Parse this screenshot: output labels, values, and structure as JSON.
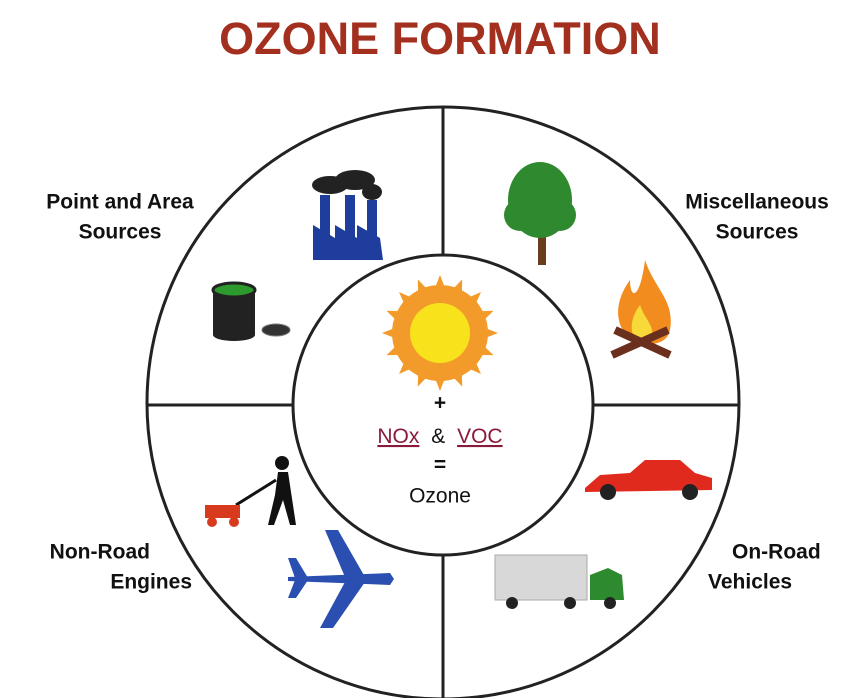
{
  "title": "OZONE FORMATION",
  "quadrants": [
    {
      "label_lines": [
        "Point and Area",
        "Sources"
      ]
    },
    {
      "label_lines": [
        "Miscellaneous",
        "Sources"
      ]
    },
    {
      "label_lines": [
        "Non-Road",
        "Engines"
      ]
    },
    {
      "label_lines": [
        "On-Road",
        "Vehicles"
      ]
    }
  ],
  "center": {
    "plus": "+",
    "nox": "NOx",
    "amp": "&",
    "voc": "VOC",
    "equals": "=",
    "result": "Ozone"
  }
}
